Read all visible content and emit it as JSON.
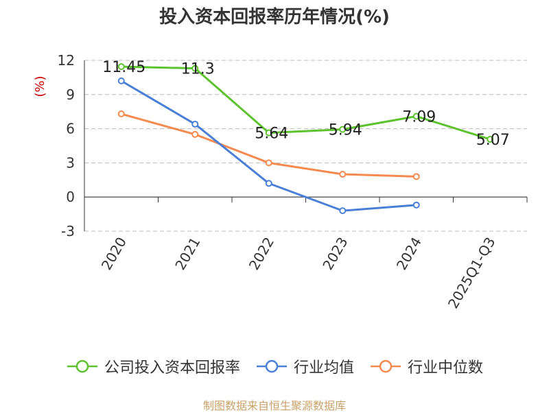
{
  "chart_data": {
    "type": "line",
    "title": "投入资本回报率历年情况(%)",
    "ylabel": "(%)",
    "categories": [
      "2020",
      "2021",
      "2022",
      "2023",
      "2024",
      "2025Q1-Q3"
    ],
    "ylim": [
      -3,
      12
    ],
    "yticks": [
      -3,
      0,
      3,
      6,
      9,
      12
    ],
    "grid": true,
    "legend_position": "bottom",
    "series": [
      {
        "name": "公司投入资本回报率",
        "color": "#5cc32e",
        "values": [
          11.45,
          11.3,
          5.64,
          5.94,
          7.09,
          5.07
        ],
        "labels": [
          "11.45",
          "11.3",
          "5.64",
          "5.94",
          "7.09",
          "5.07"
        ]
      },
      {
        "name": "行业均值",
        "color": "#4a7fd8",
        "values": [
          10.2,
          6.4,
          1.2,
          -1.2,
          -0.7,
          null
        ]
      },
      {
        "name": "行业中位数",
        "color": "#f5894e",
        "values": [
          7.3,
          5.5,
          3.0,
          2.0,
          1.8,
          null
        ]
      }
    ]
  },
  "source": "制图数据来自恒生聚源数据库"
}
